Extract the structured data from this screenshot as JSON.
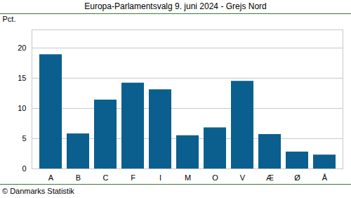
{
  "chart_data": {
    "type": "bar",
    "title": "Europa-Parlamentsvalg 9. juni 2024 - Grejs Nord",
    "y_label": "Pct.",
    "caption": "© Danmarks Statistik",
    "categories": [
      "A",
      "B",
      "C",
      "F",
      "I",
      "M",
      "O",
      "V",
      "Æ",
      "Ø",
      "Å"
    ],
    "values": [
      18.9,
      5.8,
      11.4,
      14.2,
      13.1,
      5.5,
      6.8,
      14.5,
      5.7,
      2.8,
      2.3
    ],
    "color": "#0b5f8e",
    "ylim": [
      0,
      23
    ],
    "yticks": [
      0,
      5,
      10,
      15,
      20
    ],
    "grid": true
  }
}
